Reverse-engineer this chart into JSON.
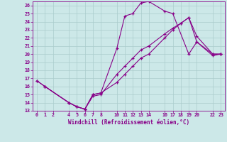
{
  "xlabel": "Windchill (Refroidissement éolien,°C)",
  "line_color": "#880088",
  "bg_color": "#cce8e8",
  "grid_color": "#aacccc",
  "xlim": [
    -0.5,
    23.5
  ],
  "ylim": [
    13,
    26.5
  ],
  "xticks": [
    0,
    1,
    2,
    4,
    5,
    6,
    7,
    8,
    10,
    11,
    12,
    13,
    14,
    16,
    17,
    18,
    19,
    20,
    22,
    23
  ],
  "yticks": [
    13,
    14,
    15,
    16,
    17,
    18,
    19,
    20,
    21,
    22,
    23,
    24,
    25,
    26
  ],
  "line1_x": [
    0,
    1,
    4,
    5,
    6,
    7,
    8,
    10,
    11,
    12,
    13,
    14,
    16,
    17,
    19,
    20,
    22,
    23
  ],
  "line1_y": [
    16.7,
    16.0,
    14.0,
    13.5,
    13.2,
    15.0,
    15.2,
    20.7,
    24.7,
    25.0,
    26.3,
    26.5,
    25.3,
    25.0,
    20.0,
    21.5,
    20.0,
    20.0
  ],
  "line2_x": [
    0,
    1,
    4,
    5,
    6,
    7,
    8,
    10,
    11,
    12,
    13,
    14,
    16,
    17,
    18,
    19,
    20,
    22,
    23
  ],
  "line2_y": [
    16.7,
    16.0,
    14.0,
    13.5,
    13.2,
    14.8,
    15.0,
    17.5,
    18.5,
    19.5,
    20.5,
    21.0,
    22.5,
    23.2,
    23.8,
    24.5,
    22.2,
    20.0,
    20.0
  ],
  "line3_x": [
    1,
    4,
    5,
    6,
    7,
    8,
    10,
    11,
    12,
    13,
    14,
    16,
    17,
    18,
    19,
    20,
    22,
    23
  ],
  "line3_y": [
    16.0,
    14.0,
    13.5,
    13.2,
    15.0,
    15.2,
    16.5,
    17.5,
    18.5,
    19.5,
    20.0,
    22.0,
    23.0,
    23.8,
    24.5,
    21.5,
    19.8,
    20.0
  ]
}
